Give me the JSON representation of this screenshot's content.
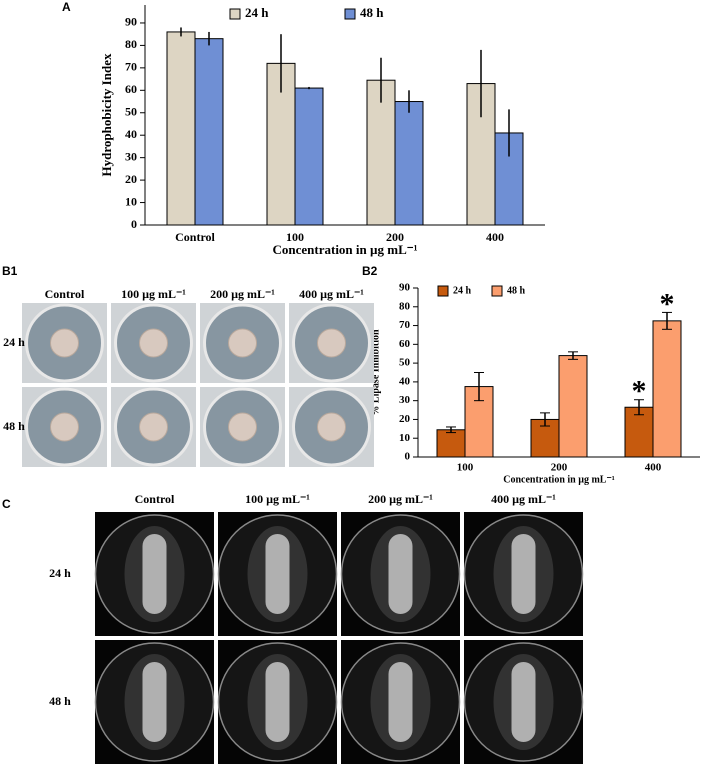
{
  "chart_data": [
    {
      "type": "bar",
      "panel": "A",
      "ylabel": "Hydrophobicity Index",
      "xlabel": "Concentration in µg mL⁻¹",
      "categories": [
        "Control",
        "100",
        "200",
        "400"
      ],
      "series": [
        {
          "name": "24 h",
          "color": "#ddd5c3",
          "values": [
            86,
            72,
            64.5,
            63
          ],
          "errors": [
            2,
            13,
            10,
            15
          ]
        },
        {
          "name": "48 h",
          "color": "#6f8fd4",
          "values": [
            83,
            61,
            55,
            41
          ],
          "errors": [
            3,
            0.5,
            5,
            10.5
          ]
        }
      ],
      "ylim": [
        0,
        98
      ],
      "yticks": [
        0,
        10,
        20,
        30,
        40,
        50,
        60,
        70,
        80,
        90
      ]
    },
    {
      "type": "bar",
      "panel": "B2",
      "ylabel": "% Lipase Inhibition",
      "xlabel": "Concentration in µg mL⁻¹",
      "categories": [
        "100",
        "200",
        "400"
      ],
      "series": [
        {
          "name": "24 h",
          "color": "#c65a0e",
          "values": [
            14.5,
            20,
            26.5
          ],
          "errors": [
            1.5,
            3.5,
            4
          ]
        },
        {
          "name": "48 h",
          "color": "#fb9e6e",
          "values": [
            37.5,
            54,
            72.5
          ],
          "errors": [
            7.5,
            2,
            4.5
          ]
        }
      ],
      "annotations": [
        {
          "text": "*",
          "x": "400",
          "series": "24 h"
        },
        {
          "text": "*",
          "x": "400",
          "series": "48 h"
        }
      ],
      "ylim": [
        0,
        90
      ],
      "yticks": [
        0,
        10,
        20,
        30,
        40,
        50,
        60,
        70,
        80,
        90
      ]
    }
  ],
  "photo_panels": [
    {
      "label": "B1",
      "columns": [
        "Control",
        "100 µg mL⁻¹",
        "200 µg mL⁻¹",
        "400 µg mL⁻¹"
      ],
      "rows": [
        "24 h",
        "48 h"
      ]
    },
    {
      "label": "C",
      "columns": [
        "Control",
        "100 µg mL⁻¹",
        "200 µg mL⁻¹",
        "400 µg mL⁻¹"
      ],
      "rows": [
        "24 h",
        "48 h"
      ]
    }
  ]
}
